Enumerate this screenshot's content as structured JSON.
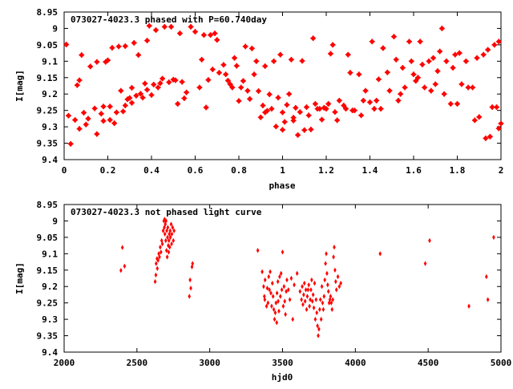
{
  "chart_data": [
    {
      "type": "scatter",
      "title": "073027-4023.3 phased with P=60.740day",
      "xlabel": "phase",
      "ylabel": "I[mag]",
      "xlim": [
        0,
        2
      ],
      "ylim": [
        8.95,
        9.4
      ],
      "y_inverted": true,
      "grid": false,
      "marker_color": "#ff0000",
      "x_ticks": [
        "0",
        "0.2",
        "0.4",
        "0.6",
        "0.8",
        "1",
        "1.2",
        "1.4",
        "1.6",
        "1.8",
        "2"
      ],
      "x_tick_values": [
        0,
        0.2,
        0.4,
        0.6,
        0.8,
        1.0,
        1.2,
        1.4,
        1.6,
        1.8,
        2.0
      ],
      "y_ticks": [
        "8.95",
        "9",
        "9.05",
        "9.1",
        "9.15",
        "9.2",
        "9.25",
        "9.3",
        "9.35",
        "9.4"
      ],
      "y_tick_values": [
        8.95,
        9.0,
        9.05,
        9.1,
        9.15,
        9.2,
        9.25,
        9.3,
        9.35,
        9.4
      ],
      "points": [
        [
          0.01,
          9.049
        ],
        [
          0.02,
          9.266
        ],
        [
          0.03,
          9.352
        ],
        [
          0.05,
          9.279
        ],
        [
          0.06,
          9.173
        ],
        [
          0.07,
          9.158
        ],
        [
          0.07,
          9.306
        ],
        [
          0.08,
          9.081
        ],
        [
          0.09,
          9.257
        ],
        [
          0.1,
          9.293
        ],
        [
          0.11,
          9.275
        ],
        [
          0.12,
          9.116
        ],
        [
          0.14,
          9.244
        ],
        [
          0.15,
          9.102
        ],
        [
          0.15,
          9.322
        ],
        [
          0.17,
          9.26
        ],
        [
          0.18,
          9.238
        ],
        [
          0.18,
          9.282
        ],
        [
          0.19,
          9.102
        ],
        [
          0.2,
          9.097
        ],
        [
          0.21,
          9.238
        ],
        [
          0.21,
          9.279
        ],
        [
          0.22,
          9.059
        ],
        [
          0.23,
          9.289
        ],
        [
          0.24,
          9.256
        ],
        [
          0.25,
          9.055
        ],
        [
          0.26,
          9.19
        ],
        [
          0.27,
          9.253
        ],
        [
          0.28,
          9.054
        ],
        [
          0.28,
          9.235
        ],
        [
          0.29,
          9.216
        ],
        [
          0.3,
          9.212
        ],
        [
          0.31,
          9.181
        ],
        [
          0.31,
          9.227
        ],
        [
          0.32,
          9.044
        ],
        [
          0.33,
          9.205
        ],
        [
          0.34,
          9.081
        ],
        [
          0.35,
          9.199
        ],
        [
          0.36,
          9.211
        ],
        [
          0.37,
          9.168
        ],
        [
          0.38,
          9.187
        ],
        [
          0.38,
          9.037
        ],
        [
          0.39,
          8.992
        ],
        [
          0.4,
          9.203
        ],
        [
          0.41,
          9.171
        ],
        [
          0.42,
          9.005
        ],
        [
          0.43,
          9.18
        ],
        [
          0.44,
          9.167
        ],
        [
          0.45,
          9.153
        ],
        [
          0.46,
          8.995
        ],
        [
          0.48,
          9.164
        ],
        [
          0.49,
          8.995
        ],
        [
          0.5,
          9.156
        ],
        [
          0.51,
          9.158
        ],
        [
          0.52,
          9.23
        ],
        [
          0.53,
          9.015
        ],
        [
          0.54,
          9.163
        ],
        [
          0.55,
          9.213
        ],
        [
          0.56,
          9.195
        ],
        [
          0.58,
          8.995
        ],
        [
          0.6,
          9.01
        ],
        [
          0.62,
          9.18
        ],
        [
          0.63,
          9.095
        ],
        [
          0.64,
          9.02
        ],
        [
          0.65,
          9.241
        ],
        [
          0.66,
          9.157
        ],
        [
          0.67,
          9.02
        ],
        [
          0.68,
          9.125
        ],
        [
          0.69,
          9.015
        ],
        [
          0.7,
          9.035
        ],
        [
          0.71,
          9.135
        ],
        [
          0.73,
          9.111
        ],
        [
          0.74,
          9.14
        ],
        [
          0.75,
          9.159
        ],
        [
          0.76,
          9.17
        ],
        [
          0.77,
          9.18
        ],
        [
          0.78,
          9.09
        ],
        [
          0.79,
          9.114
        ],
        [
          0.8,
          9.221
        ],
        [
          0.81,
          9.18
        ],
        [
          0.82,
          9.16
        ],
        [
          0.83,
          9.055
        ],
        [
          0.84,
          9.19
        ],
        [
          0.85,
          9.215
        ],
        [
          0.86,
          9.061
        ],
        [
          0.87,
          9.14
        ],
        [
          0.88,
          9.1
        ],
        [
          0.89,
          9.191
        ],
        [
          0.9,
          9.271
        ],
        [
          0.91,
          9.235
        ],
        [
          0.92,
          9.256
        ],
        [
          0.92,
          9.115
        ],
        [
          0.93,
          9.251
        ],
        [
          0.94,
          9.201
        ],
        [
          0.95,
          9.245
        ],
        [
          0.96,
          9.1
        ],
        [
          0.97,
          9.299
        ],
        [
          0.98,
          9.211
        ],
        [
          0.99,
          9.08
        ],
        [
          1.0,
          9.309
        ],
        [
          1.0,
          9.256
        ],
        [
          1.01,
          9.285
        ],
        [
          1.02,
          9.233
        ],
        [
          1.03,
          9.2
        ],
        [
          1.04,
          9.095
        ],
        [
          1.05,
          9.281
        ],
        [
          1.05,
          9.272
        ],
        [
          1.06,
          9.242
        ],
        [
          1.07,
          9.325
        ],
        [
          1.08,
          9.255
        ],
        [
          1.09,
          9.099
        ],
        [
          1.1,
          9.31
        ],
        [
          1.11,
          9.24
        ],
        [
          1.12,
          9.265
        ],
        [
          1.13,
          9.308
        ],
        [
          1.14,
          9.03
        ],
        [
          1.15,
          9.23
        ],
        [
          1.16,
          9.245
        ],
        [
          1.17,
          9.245
        ],
        [
          1.18,
          9.278
        ],
        [
          1.19,
          9.242
        ],
        [
          1.2,
          9.245
        ],
        [
          1.21,
          9.23
        ],
        [
          1.22,
          9.077
        ],
        [
          1.23,
          9.05
        ],
        [
          1.24,
          9.255
        ],
        [
          1.25,
          9.28
        ],
        [
          1.26,
          9.22
        ],
        [
          1.28,
          9.235
        ],
        [
          1.29,
          9.245
        ],
        [
          1.3,
          9.08
        ],
        [
          1.31,
          9.135
        ],
        [
          1.32,
          9.25
        ],
        [
          1.33,
          9.25
        ],
        [
          1.35,
          9.14
        ],
        [
          1.36,
          9.265
        ],
        [
          1.37,
          9.22
        ],
        [
          1.38,
          9.19
        ],
        [
          1.4,
          9.225
        ],
        [
          1.41,
          9.04
        ],
        [
          1.42,
          9.245
        ],
        [
          1.43,
          9.22
        ],
        [
          1.44,
          9.155
        ],
        [
          1.45,
          9.245
        ],
        [
          1.46,
          9.06
        ],
        [
          1.48,
          9.134
        ],
        [
          1.49,
          9.19
        ],
        [
          1.51,
          9.025
        ],
        [
          1.52,
          9.095
        ],
        [
          1.53,
          9.22
        ],
        [
          1.54,
          9.2
        ],
        [
          1.55,
          9.12
        ],
        [
          1.56,
          9.18
        ],
        [
          1.58,
          9.04
        ],
        [
          1.59,
          9.1
        ],
        [
          1.6,
          9.14
        ],
        [
          1.61,
          9.16
        ],
        [
          1.62,
          9.15
        ],
        [
          1.63,
          9.04
        ],
        [
          1.64,
          9.11
        ],
        [
          1.65,
          9.18
        ],
        [
          1.67,
          9.1
        ],
        [
          1.68,
          9.19
        ],
        [
          1.69,
          9.09
        ],
        [
          1.7,
          9.17
        ],
        [
          1.71,
          9.13
        ],
        [
          1.72,
          9.07
        ],
        [
          1.73,
          9.0
        ],
        [
          1.74,
          9.2
        ],
        [
          1.75,
          9.1
        ],
        [
          1.77,
          9.23
        ],
        [
          1.78,
          9.12
        ],
        [
          1.79,
          9.08
        ],
        [
          1.8,
          9.23
        ],
        [
          1.81,
          9.075
        ],
        [
          1.82,
          9.17
        ],
        [
          1.84,
          9.1
        ],
        [
          1.85,
          9.18
        ],
        [
          1.87,
          9.18
        ],
        [
          1.88,
          9.28
        ],
        [
          1.89,
          9.09
        ],
        [
          1.9,
          9.27
        ],
        [
          1.92,
          9.08
        ],
        [
          1.93,
          9.335
        ],
        [
          1.94,
          9.065
        ],
        [
          1.95,
          9.33
        ],
        [
          1.96,
          9.24
        ],
        [
          1.97,
          9.05
        ],
        [
          1.98,
          9.24
        ],
        [
          1.99,
          9.305
        ],
        [
          1.99,
          9.04
        ],
        [
          2.0,
          9.29
        ]
      ]
    },
    {
      "type": "scatter",
      "title": "073027-4023.3 not phased light curve",
      "xlabel": "hjd0",
      "ylabel": "I[mag]",
      "xlim": [
        2000,
        5000
      ],
      "ylim": [
        8.95,
        9.4
      ],
      "y_inverted": true,
      "grid": false,
      "marker_color": "#ff0000",
      "x_ticks": [
        "2000",
        "2500",
        "3000",
        "3500",
        "4000",
        "4500",
        "5000"
      ],
      "x_tick_values": [
        2000,
        2500,
        3000,
        3500,
        4000,
        4500,
        5000
      ],
      "y_ticks": [
        "8.95",
        "9",
        "9.05",
        "9.1",
        "9.15",
        "9.2",
        "9.25",
        "9.3",
        "9.35",
        "9.4"
      ],
      "y_tick_values": [
        8.95,
        9.0,
        9.05,
        9.1,
        9.15,
        9.2,
        9.25,
        9.3,
        9.35,
        9.4
      ],
      "points": [
        [
          2390,
          9.151
        ],
        [
          2400,
          9.081
        ],
        [
          2415,
          9.138
        ],
        [
          2625,
          9.185
        ],
        [
          2630,
          9.165
        ],
        [
          2632,
          9.13
        ],
        [
          2638,
          9.115
        ],
        [
          2640,
          9.145
        ],
        [
          2645,
          9.12
        ],
        [
          2650,
          9.1
        ],
        [
          2655,
          9.11
        ],
        [
          2660,
          9.08
        ],
        [
          2665,
          9.095
        ],
        [
          2670,
          9.06
        ],
        [
          2675,
          9.07
        ],
        [
          2680,
          9.03
        ],
        [
          2685,
          9.0
        ],
        [
          2688,
          9.02
        ],
        [
          2690,
          8.995
        ],
        [
          2692,
          9.04
        ],
        [
          2695,
          9.01
        ],
        [
          2698,
          9.06
        ],
        [
          2700,
          9.0
        ],
        [
          2703,
          9.09
        ],
        [
          2705,
          9.03
        ],
        [
          2708,
          9.11
        ],
        [
          2710,
          9.05
        ],
        [
          2712,
          9.02
        ],
        [
          2715,
          9.075
        ],
        [
          2718,
          9.095
        ],
        [
          2720,
          9.06
        ],
        [
          2722,
          9.04
        ],
        [
          2725,
          9.08
        ],
        [
          2728,
          9.03
        ],
        [
          2730,
          9.05
        ],
        [
          2735,
          9.01
        ],
        [
          2738,
          9.07
        ],
        [
          2740,
          9.04
        ],
        [
          2745,
          9.02
        ],
        [
          2750,
          9.06
        ],
        [
          2755,
          9.03
        ],
        [
          2860,
          9.23
        ],
        [
          2865,
          9.18
        ],
        [
          2870,
          9.205
        ],
        [
          2878,
          9.14
        ],
        [
          2882,
          9.13
        ],
        [
          3330,
          9.09
        ],
        [
          3360,
          9.155
        ],
        [
          3370,
          9.2
        ],
        [
          3375,
          9.23
        ],
        [
          3378,
          9.24
        ],
        [
          3380,
          9.18
        ],
        [
          3390,
          9.26
        ],
        [
          3395,
          9.205
        ],
        [
          3400,
          9.25
        ],
        [
          3405,
          9.17
        ],
        [
          3410,
          9.21
        ],
        [
          3415,
          9.155
        ],
        [
          3420,
          9.22
        ],
        [
          3425,
          9.26
        ],
        [
          3430,
          9.19
        ],
        [
          3435,
          9.23
        ],
        [
          3440,
          9.27
        ],
        [
          3445,
          9.3
        ],
        [
          3450,
          9.28
        ],
        [
          3455,
          9.25
        ],
        [
          3460,
          9.31
        ],
        [
          3462,
          9.22
        ],
        [
          3468,
          9.185
        ],
        [
          3470,
          9.245
        ],
        [
          3475,
          9.275
        ],
        [
          3480,
          9.17
        ],
        [
          3485,
          9.23
        ],
        [
          3490,
          9.16
        ],
        [
          3495,
          9.21
        ],
        [
          3500,
          9.095
        ],
        [
          3505,
          9.26
        ],
        [
          3510,
          9.2
        ],
        [
          3515,
          9.245
        ],
        [
          3520,
          9.285
        ],
        [
          3525,
          9.215
        ],
        [
          3530,
          9.18
        ],
        [
          3540,
          9.21
        ],
        [
          3550,
          9.24
        ],
        [
          3560,
          9.175
        ],
        [
          3570,
          9.3
        ],
        [
          3580,
          9.195
        ],
        [
          3600,
          9.16
        ],
        [
          3620,
          9.215
        ],
        [
          3630,
          9.24
        ],
        [
          3635,
          9.2
        ],
        [
          3640,
          9.255
        ],
        [
          3645,
          9.225
        ],
        [
          3650,
          9.19
        ],
        [
          3655,
          9.245
        ],
        [
          3660,
          9.21
        ],
        [
          3665,
          9.27
        ],
        [
          3670,
          9.23
        ],
        [
          3675,
          9.21
        ],
        [
          3680,
          9.195
        ],
        [
          3685,
          9.26
        ],
        [
          3690,
          9.24
        ],
        [
          3695,
          9.21
        ],
        [
          3700,
          9.18
        ],
        [
          3705,
          9.245
        ],
        [
          3710,
          9.225
        ],
        [
          3715,
          9.265
        ],
        [
          3720,
          9.19
        ],
        [
          3725,
          9.3
        ],
        [
          3730,
          9.24
        ],
        [
          3735,
          9.28
        ],
        [
          3740,
          9.32
        ],
        [
          3745,
          9.35
        ],
        [
          3750,
          9.33
        ],
        [
          3755,
          9.27
        ],
        [
          3760,
          9.24
        ],
        [
          3765,
          9.3
        ],
        [
          3770,
          9.2
        ],
        [
          3775,
          9.25
        ],
        [
          3780,
          9.27
        ],
        [
          3785,
          9.23
        ],
        [
          3790,
          9.18
        ],
        [
          3795,
          9.13
        ],
        [
          3800,
          9.1
        ],
        [
          3805,
          9.16
        ],
        [
          3810,
          9.195
        ],
        [
          3815,
          9.215
        ],
        [
          3820,
          9.25
        ],
        [
          3825,
          9.24
        ],
        [
          3830,
          9.23
        ],
        [
          3835,
          9.25
        ],
        [
          3840,
          9.27
        ],
        [
          3845,
          9.24
        ],
        [
          3850,
          9.11
        ],
        [
          3855,
          9.08
        ],
        [
          3860,
          9.15
        ],
        [
          3865,
          9.185
        ],
        [
          3870,
          9.21
        ],
        [
          3880,
          9.17
        ],
        [
          3890,
          9.2
        ],
        [
          3900,
          9.19
        ],
        [
          4170,
          9.1
        ],
        [
          4480,
          9.13
        ],
        [
          4510,
          9.06
        ],
        [
          4780,
          9.26
        ],
        [
          4900,
          9.17
        ],
        [
          4910,
          9.24
        ],
        [
          4950,
          9.05
        ]
      ]
    }
  ]
}
